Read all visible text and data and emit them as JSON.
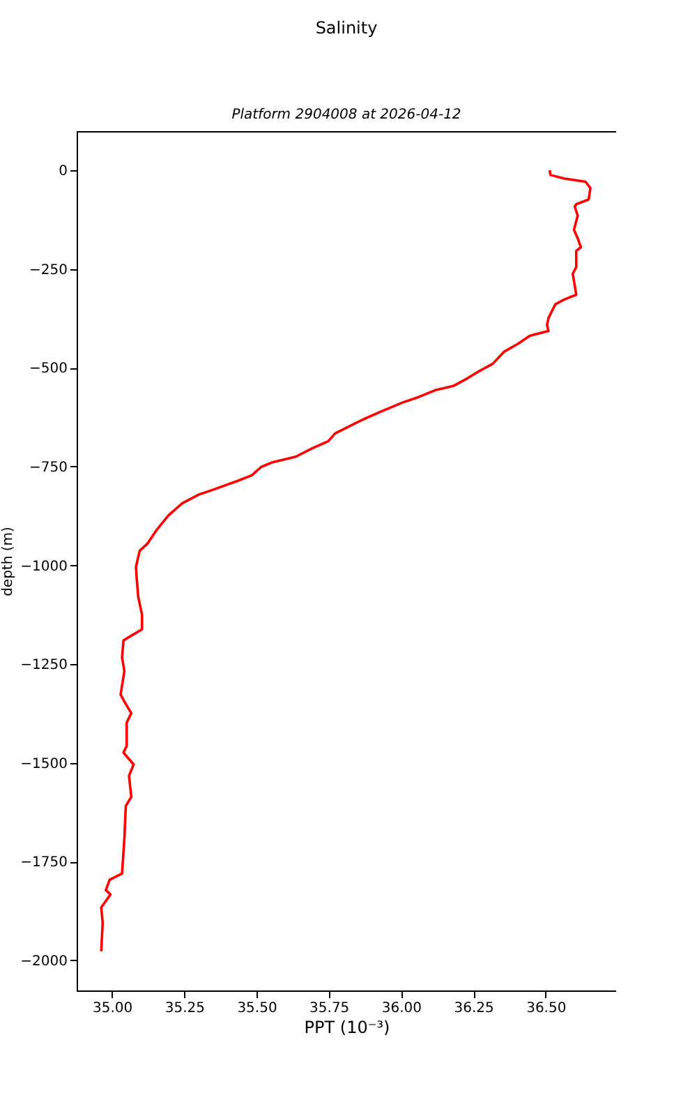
{
  "chart_data": {
    "type": "line",
    "title": "Salinity",
    "subtitle": "Platform 2904008 at 2026-04-12",
    "xlabel": "PPT (10⁻³)",
    "ylabel": "depth (m)",
    "series": [
      {
        "color": "#ff0000",
        "x": [
          36.514,
          36.517,
          36.565,
          36.638,
          36.655,
          36.649,
          36.606,
          36.601,
          36.611,
          36.598,
          36.611,
          36.622,
          36.606,
          36.606,
          36.594,
          36.606,
          36.565,
          36.534,
          36.51,
          36.505,
          36.51,
          36.445,
          36.405,
          36.357,
          36.317,
          36.269,
          36.229,
          36.181,
          36.117,
          36.061,
          36.005,
          35.933,
          35.868,
          35.772,
          35.748,
          35.692,
          35.636,
          35.556,
          35.516,
          35.484,
          35.436,
          35.348,
          35.3,
          35.243,
          35.195,
          35.155,
          35.123,
          35.096,
          35.083,
          35.085,
          35.091,
          35.104,
          35.104,
          35.04,
          35.035,
          35.043,
          35.03,
          35.043,
          35.067,
          35.051,
          35.051,
          35.04,
          35.075,
          35.059,
          35.067,
          35.048,
          35.043,
          35.035,
          34.992,
          34.979,
          34.995,
          34.963,
          34.968,
          34.963
        ],
        "values": [
          0,
          -12,
          -21,
          -29,
          -45,
          -74,
          -86,
          -92,
          -115,
          -151,
          -172,
          -195,
          -204,
          -245,
          -262,
          -315,
          -327,
          -339,
          -374,
          -392,
          -407,
          -419,
          -439,
          -459,
          -490,
          -509,
          -527,
          -546,
          -557,
          -574,
          -588,
          -610,
          -631,
          -666,
          -686,
          -704,
          -725,
          -739,
          -751,
          -772,
          -786,
          -809,
          -821,
          -843,
          -874,
          -910,
          -945,
          -963,
          -1004,
          -1027,
          -1080,
          -1125,
          -1162,
          -1190,
          -1233,
          -1268,
          -1327,
          -1345,
          -1374,
          -1398,
          -1457,
          -1474,
          -1504,
          -1533,
          -1586,
          -1609,
          -1692,
          -1780,
          -1796,
          -1822,
          -1833,
          -1866,
          -1904,
          -1977
        ]
      }
    ],
    "xlim": [
      34.878,
      36.744
    ],
    "xticks": [
      {
        "value": 35,
        "label": "35.00"
      },
      {
        "value": 35.25,
        "label": "35.25"
      },
      {
        "value": 35.5,
        "label": "35.50"
      },
      {
        "value": 35.75,
        "label": "35.75"
      },
      {
        "value": 36,
        "label": "36.00"
      },
      {
        "value": 36.25,
        "label": "36.25"
      },
      {
        "value": 36.5,
        "label": "36.50"
      }
    ],
    "ylim": [
      -2076,
      99
    ],
    "yticks": [
      0,
      -250,
      -500,
      -750,
      -1000,
      -1250,
      -1500,
      -1750,
      -2000
    ],
    "grid": false,
    "marker": "none",
    "line_style": "solid"
  }
}
